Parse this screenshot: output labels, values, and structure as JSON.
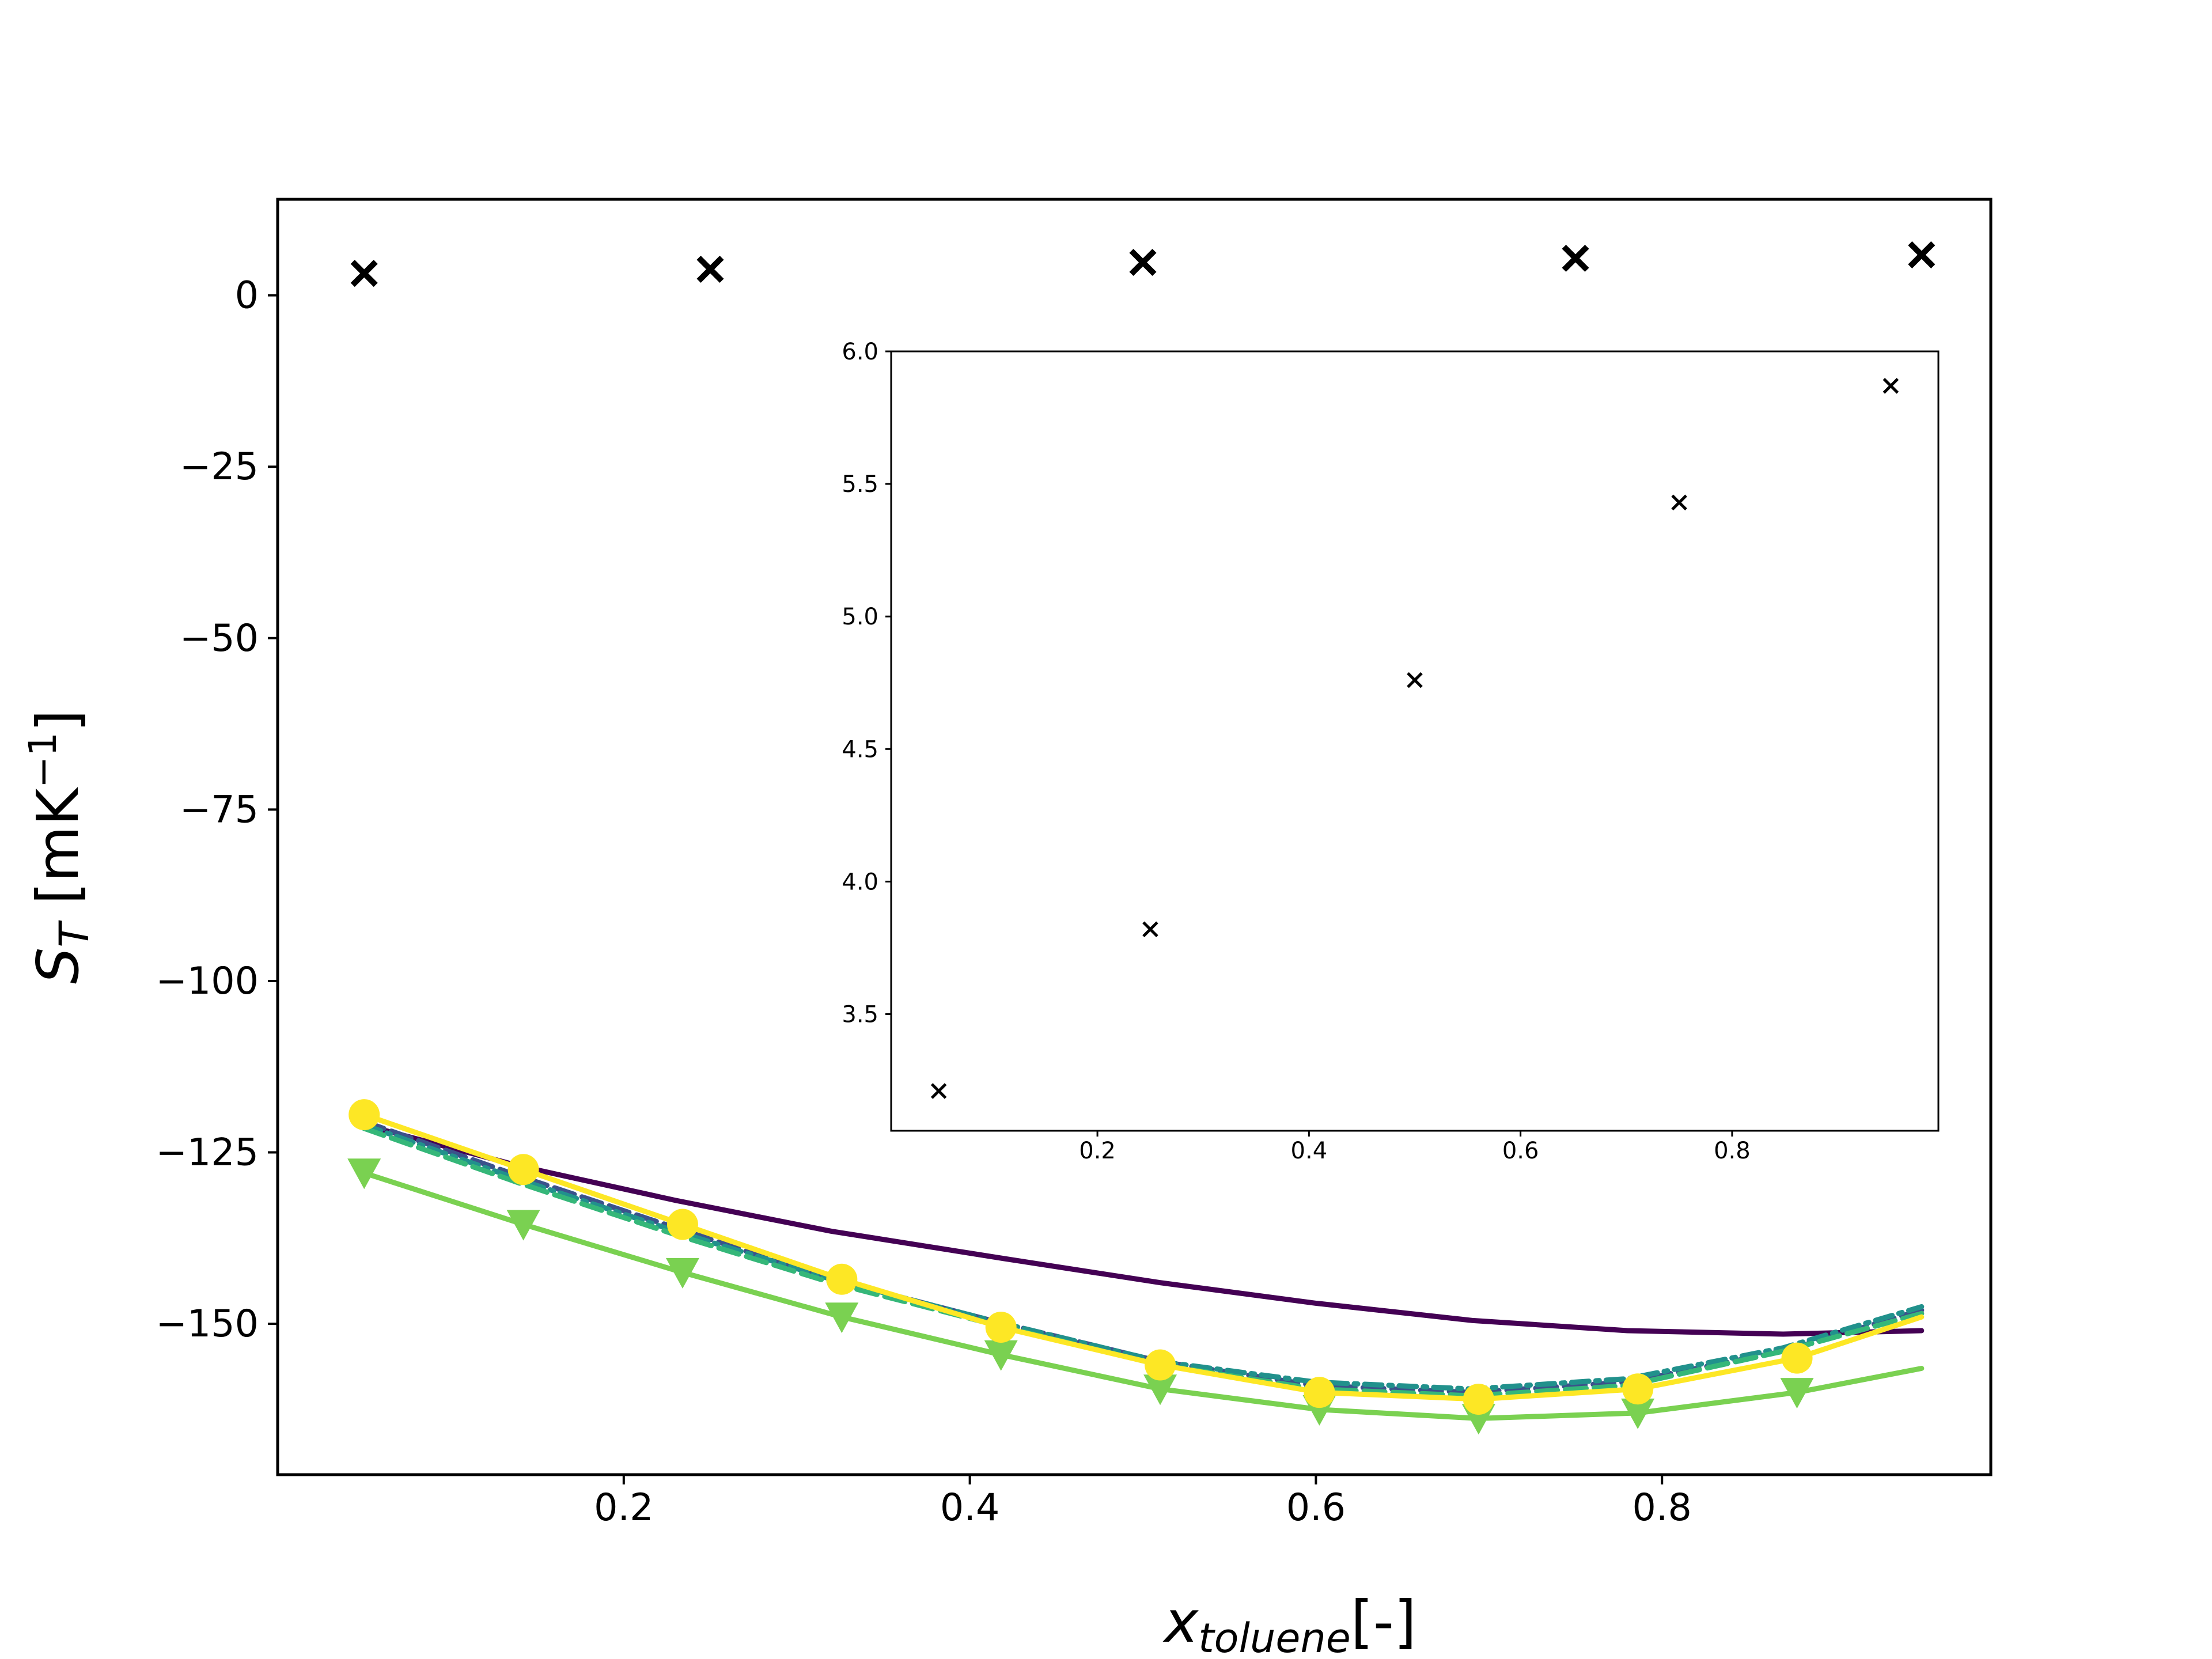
{
  "chart_data": [
    {
      "type": "line",
      "xlabel": {
        "main": "x",
        "sub": "toluene",
        "suffix": "[-]"
      },
      "ylabel": {
        "main": "S",
        "sub": "T",
        "unit_pre": " [mK",
        "unit_sup": "−1",
        "unit_post": "]"
      },
      "xlim": [
        0.0,
        0.99
      ],
      "ylim": [
        -172,
        14
      ],
      "xticks": [
        0.2,
        0.4,
        0.6,
        0.8
      ],
      "xtick_labels": [
        "0.2",
        "0.4",
        "0.6",
        "0.8"
      ],
      "yticks": [
        0,
        -25,
        -50,
        -75,
        -100,
        -125,
        -150
      ],
      "ytick_labels": [
        "0",
        "−25",
        "−50",
        "−75",
        "−100",
        "−125",
        "−150"
      ],
      "grid": false,
      "legend": false,
      "series": [
        {
          "style": "markers",
          "marker": "x",
          "color": "#000000",
          "x": [
            0.05,
            0.25,
            0.5,
            0.75,
            0.95
          ],
          "y": [
            3.2,
            3.8,
            4.8,
            5.4,
            5.9
          ]
        },
        {
          "style": "line",
          "color": "#440154",
          "x": [
            0.05,
            0.14,
            0.23,
            0.32,
            0.42,
            0.51,
            0.6,
            0.69,
            0.78,
            0.87,
            0.95
          ],
          "y": [
            -121,
            -127,
            -132,
            -136.5,
            -140.5,
            -144,
            -147,
            -149.5,
            -151,
            -151.5,
            -151
          ]
        },
        {
          "style": "dashed",
          "color": "#3b528b",
          "x": [
            0.05,
            0.14,
            0.23,
            0.32,
            0.42,
            0.51,
            0.6,
            0.69,
            0.78,
            0.87,
            0.95
          ],
          "y": [
            -120.5,
            -128.5,
            -136,
            -143.5,
            -150,
            -155.5,
            -159,
            -160,
            -158.5,
            -154,
            -148
          ]
        },
        {
          "style": "dashdot",
          "color": "#21918c",
          "x": [
            0.05,
            0.14,
            0.23,
            0.32,
            0.42,
            0.51,
            0.6,
            0.69,
            0.78,
            0.87,
            0.95
          ],
          "y": [
            -121,
            -129,
            -136.5,
            -143.5,
            -150,
            -155.5,
            -158.5,
            -159.5,
            -158,
            -153.5,
            -147.5
          ]
        },
        {
          "style": "dashed",
          "color": "#35b779",
          "x": [
            0.05,
            0.14,
            0.23,
            0.32,
            0.42,
            0.51,
            0.6,
            0.69,
            0.78,
            0.87,
            0.95
          ],
          "y": [
            -121.5,
            -129.5,
            -137,
            -144,
            -150.5,
            -156,
            -159.5,
            -160.5,
            -159,
            -154,
            -148.5
          ]
        },
        {
          "style": "line+markers",
          "marker": "triangle-down",
          "color": "#7ad151",
          "x": [
            0.05,
            0.142,
            0.234,
            0.326,
            0.418,
            0.51,
            0.602,
            0.694,
            0.786,
            0.878,
            0.95
          ],
          "y": [
            -128,
            -135.5,
            -142.5,
            -149,
            -154.5,
            -159.5,
            -162.5,
            -163.8,
            -163,
            -160,
            -156.5
          ],
          "marker_count": 10
        },
        {
          "style": "line+markers",
          "marker": "circle",
          "color": "#fde725",
          "x": [
            0.05,
            0.142,
            0.234,
            0.326,
            0.418,
            0.51,
            0.602,
            0.694,
            0.786,
            0.878,
            0.95
          ],
          "y": [
            -119.5,
            -127.5,
            -135.5,
            -143.5,
            -150.5,
            -156,
            -160,
            -161,
            -159.5,
            -155,
            -149
          ],
          "marker_count": 10
        }
      ]
    },
    {
      "type": "scatter",
      "role": "inset",
      "xlim": [
        0.005,
        0.995
      ],
      "ylim": [
        3.06,
        6.0
      ],
      "xticks": [
        0.2,
        0.4,
        0.6,
        0.8
      ],
      "xtick_labels": [
        "0.2",
        "0.4",
        "0.6",
        "0.8"
      ],
      "yticks": [
        3.5,
        4.0,
        4.5,
        5.0,
        5.5,
        6.0
      ],
      "ytick_labels": [
        "3.5",
        "4.0",
        "4.5",
        "5.0",
        "5.5",
        "6.0"
      ],
      "grid": false,
      "legend": false,
      "series": [
        {
          "style": "markers",
          "marker": "x",
          "color": "#000000",
          "x": [
            0.05,
            0.25,
            0.5,
            0.75,
            0.95
          ],
          "y": [
            3.21,
            3.82,
            4.76,
            5.43,
            5.87
          ]
        }
      ]
    }
  ]
}
